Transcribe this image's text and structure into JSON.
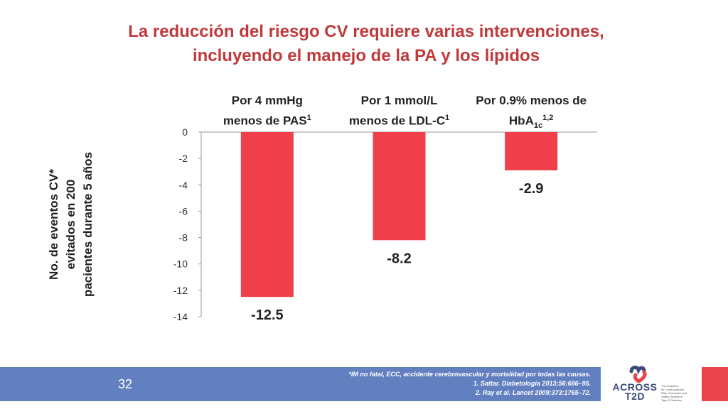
{
  "title": {
    "line1": "La reducción del riesgo CV requiere varias intervenciones,",
    "line2": "incluyendo el manejo de la PA y los lípidos"
  },
  "chart_data": {
    "type": "bar",
    "categories": [
      {
        "line1": "Por 4 mmHg",
        "line2": "menos de PAS",
        "sup": "1"
      },
      {
        "line1": "Por 1 mmol/L",
        "line2": "menos de LDL-C",
        "sup": "1"
      },
      {
        "line1": "Por 0.9% menos de",
        "line2": "HbA",
        "sub": "1c",
        "sup": "1,2"
      }
    ],
    "values": [
      -12.5,
      -8.2,
      -2.9
    ],
    "value_labels": [
      "-12.5",
      "-8.2",
      "-2.9"
    ],
    "ylabel": [
      "No. de eventos CV*",
      "evitados en 200",
      "pacientes durante 5 años"
    ],
    "ylim": [
      -14,
      0
    ],
    "yticks": [
      "0",
      "-2",
      "-4",
      "-6",
      "-8",
      "-10",
      "-12",
      "-14"
    ],
    "ytick_values": [
      0,
      -2,
      -4,
      -6,
      -8,
      -10,
      -12,
      -14
    ],
    "bar_color": "#ee3f4a",
    "grid": false
  },
  "footer": {
    "slide_number": "32",
    "notes": [
      "*IM no fatal, ECC, accidente cerebrovascular y mortalidad por todas las causas.",
      "1. Sattar. Diabetologia 2013;56:686–95.",
      "2. Ray et al. Lancet 2009;373:1765–72."
    ],
    "background_color": "#6280bf"
  },
  "logo": {
    "name_line1": "ACROSS",
    "name_line2": "T2D",
    "tagline": [
      "The Academy",
      "for Cardiovascular",
      "Risk, Outcomes and",
      "Safety Studies in",
      "Type 2 Diabetes"
    ]
  }
}
